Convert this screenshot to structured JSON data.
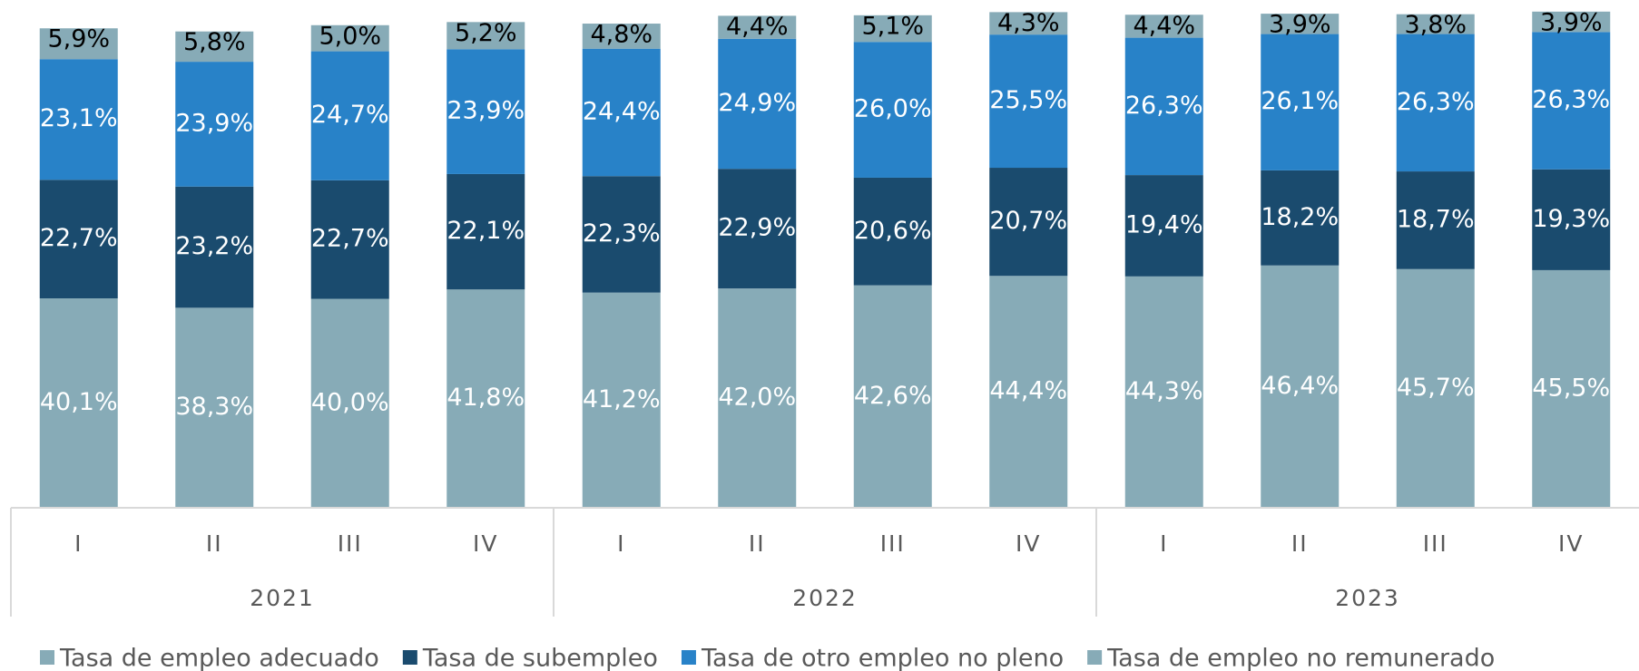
{
  "chart_data": {
    "type": "stacked-bar",
    "categories": [
      "I",
      "II",
      "III",
      "IV",
      "I",
      "II",
      "III",
      "IV",
      "I",
      "II",
      "III",
      "IV"
    ],
    "years": [
      "2021",
      "2022",
      "2023"
    ],
    "ylim": [
      0,
      100
    ],
    "series": [
      {
        "name": "Tasa de empleo adecuado",
        "color": "#87abb7",
        "label_color": "#ffffff",
        "values": [
          40.1,
          38.3,
          40.0,
          41.8,
          41.2,
          42.0,
          42.6,
          44.4,
          44.3,
          46.4,
          45.7,
          45.5
        ],
        "value_labels": [
          "40,1%",
          "38,3%",
          "40,0%",
          "41,8%",
          "41,2%",
          "42,0%",
          "42,6%",
          "44,4%",
          "44,3%",
          "46,4%",
          "45,7%",
          "45,5%"
        ]
      },
      {
        "name": "Tasa de subempleo",
        "color": "#1a4b6e",
        "label_color": "#ffffff",
        "values": [
          22.7,
          23.2,
          22.7,
          22.1,
          22.3,
          22.9,
          20.6,
          20.7,
          19.4,
          18.2,
          18.7,
          19.3
        ],
        "value_labels": [
          "22,7%",
          "23,2%",
          "22,7%",
          "22,1%",
          "22,3%",
          "22,9%",
          "20,6%",
          "20,7%",
          "19,4%",
          "18,2%",
          "18,7%",
          "19,3%"
        ]
      },
      {
        "name": "Tasa de otro empleo no pleno",
        "color": "#2882c8",
        "label_color": "#ffffff",
        "values": [
          23.1,
          23.9,
          24.7,
          23.9,
          24.4,
          24.9,
          26.0,
          25.5,
          26.3,
          26.1,
          26.3,
          26.3
        ],
        "value_labels": [
          "23,1%",
          "23,9%",
          "24,7%",
          "23,9%",
          "24,4%",
          "24,9%",
          "26,0%",
          "25,5%",
          "26,3%",
          "26,1%",
          "26,3%",
          "26,3%"
        ]
      },
      {
        "name": "Tasa de empleo no remunerado",
        "color": "#87abb7",
        "label_color": "#000000",
        "values": [
          5.9,
          5.8,
          5.0,
          5.2,
          4.8,
          4.4,
          5.1,
          4.3,
          4.4,
          3.9,
          3.8,
          3.9
        ],
        "value_labels": [
          "5,9%",
          "5,8%",
          "5,0%",
          "5,2%",
          "4,8%",
          "4,4%",
          "5,1%",
          "4,3%",
          "4,4%",
          "3,9%",
          "3,8%",
          "3,9%"
        ]
      }
    ]
  }
}
